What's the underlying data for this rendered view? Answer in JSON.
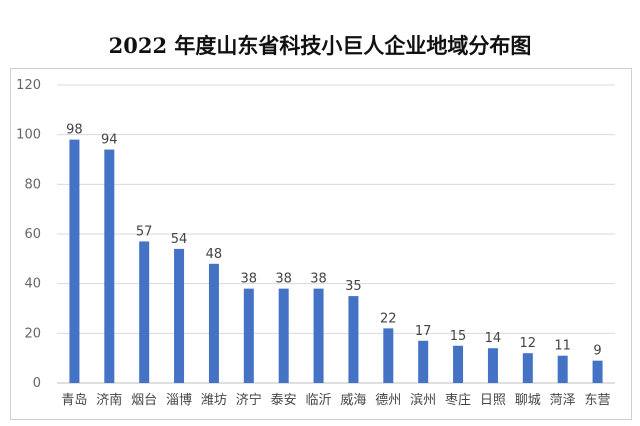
{
  "chart_data": {
    "type": "bar",
    "title": "2022 年度山东省科技小巨人企业地域分布图",
    "categories": [
      "青岛",
      "济南",
      "烟台",
      "淄博",
      "潍坊",
      "济宁",
      "泰安",
      "临沂",
      "威海",
      "德州",
      "滨州",
      "枣庄",
      "日照",
      "聊城",
      "菏泽",
      "东营"
    ],
    "values": [
      98,
      94,
      57,
      54,
      48,
      38,
      38,
      38,
      35,
      22,
      17,
      15,
      14,
      12,
      11,
      9
    ],
    "yticks": [
      0,
      20,
      40,
      60,
      80,
      100,
      120
    ],
    "ylim": [
      0,
      120
    ],
    "xlabel": "",
    "ylabel": "",
    "grid": true,
    "legend": "none",
    "bar_color": "#4472c4",
    "grid_color": "#d9d9d9"
  }
}
